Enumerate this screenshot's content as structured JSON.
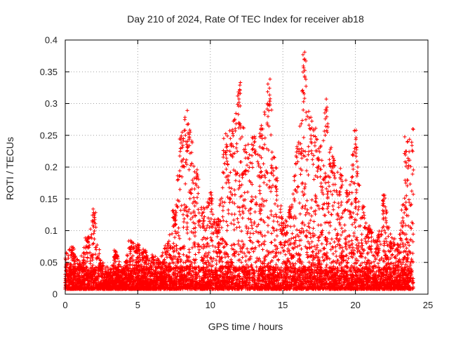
{
  "chart_data": {
    "type": "scatter",
    "title": "Day 210 of 2024, Rate Of TEC Index for receiver ab18",
    "xlabel": "GPS time / hours",
    "ylabel": "ROTI / TECUs",
    "xlim": [
      0,
      25
    ],
    "ylim": [
      0,
      0.4
    ],
    "x_ticks": [
      0,
      5,
      10,
      15,
      20,
      25
    ],
    "y_ticks": [
      0,
      0.05,
      0.1,
      0.15,
      0.2,
      0.25,
      0.3,
      0.35,
      0.4
    ],
    "grid": true,
    "marker": "plus",
    "series_color": "#ff0000",
    "envelope_hours": [
      0,
      0.5,
      1,
      1.5,
      2,
      2.5,
      3,
      3.5,
      4,
      4.5,
      5,
      5.5,
      6,
      6.5,
      7,
      7.5,
      8,
      8.5,
      9,
      9.5,
      10,
      10.5,
      11,
      11.5,
      12,
      12.5,
      13,
      13.5,
      14,
      14.5,
      15,
      15.5,
      16,
      16.5,
      17,
      17.5,
      18,
      18.5,
      19,
      19.5,
      20,
      20.5,
      21,
      21.5,
      22,
      22.5,
      23,
      23.5,
      24
    ],
    "envelope_roti": [
      0.065,
      0.075,
      0.05,
      0.09,
      0.135,
      0.05,
      0.035,
      0.07,
      0.04,
      0.085,
      0.08,
      0.07,
      0.06,
      0.055,
      0.08,
      0.14,
      0.26,
      0.29,
      0.2,
      0.14,
      0.16,
      0.12,
      0.25,
      0.26,
      0.34,
      0.24,
      0.26,
      0.27,
      0.345,
      0.2,
      0.12,
      0.14,
      0.25,
      0.385,
      0.29,
      0.23,
      0.31,
      0.22,
      0.2,
      0.16,
      0.26,
      0.14,
      0.11,
      0.09,
      0.16,
      0.09,
      0.08,
      0.25,
      0.26
    ]
  }
}
